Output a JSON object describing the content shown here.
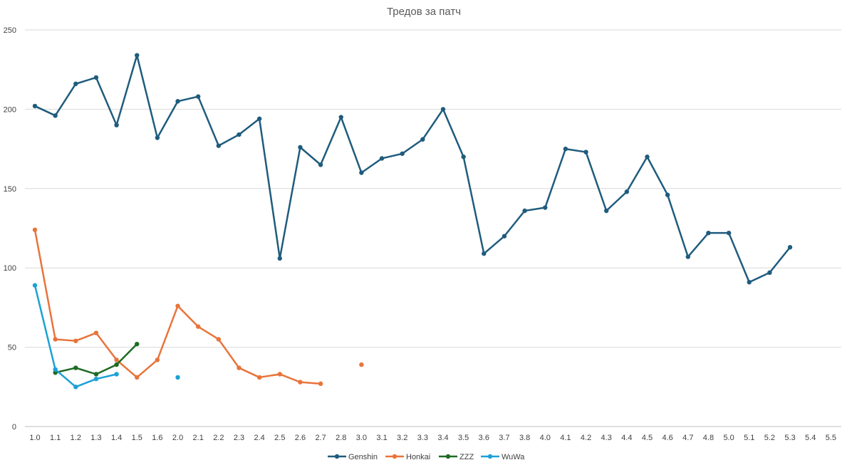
{
  "chart_data": {
    "type": "line",
    "title": "Тредов за патч",
    "xlabel": "",
    "ylabel": "",
    "ylim": [
      0,
      250
    ],
    "yticks": [
      0,
      50,
      100,
      150,
      200,
      250
    ],
    "grid": "horizontal",
    "legend_position": "bottom",
    "categories": [
      "1.0",
      "1.1",
      "1.2",
      "1.3",
      "1.4",
      "1.5",
      "1.6",
      "2.0",
      "2.1",
      "2.2",
      "2.3",
      "2.4",
      "2.5",
      "2.6",
      "2.7",
      "2.8",
      "3.0",
      "3.1",
      "3.2",
      "3.3",
      "3.4",
      "3.5",
      "3.6",
      "3.7",
      "3.8",
      "4.0",
      "4.1",
      "4.2",
      "4.3",
      "4.4",
      "4.5",
      "4.6",
      "4.7",
      "4.8",
      "5.0",
      "5.1",
      "5.2",
      "5.3",
      "5.4",
      "5.5"
    ],
    "series": [
      {
        "name": "Genshin",
        "color": "#1f5c7d",
        "values": [
          202,
          196,
          216,
          220,
          190,
          234,
          182,
          205,
          208,
          177,
          184,
          194,
          106,
          176,
          165,
          195,
          160,
          169,
          172,
          181,
          200,
          170,
          109,
          120,
          136,
          138,
          175,
          173,
          136,
          148,
          170,
          146,
          107,
          122,
          122,
          91,
          97,
          113,
          null,
          null
        ]
      },
      {
        "name": "Honkai",
        "color": "#e8743b",
        "values": [
          124,
          55,
          54,
          59,
          42,
          31,
          42,
          76,
          63,
          55,
          37,
          31,
          33,
          28,
          27,
          null,
          39,
          null,
          null,
          null,
          null,
          null,
          null,
          null,
          null,
          null,
          null,
          null,
          null,
          null,
          null,
          null,
          null,
          null,
          null,
          null,
          null,
          null,
          null,
          null
        ]
      },
      {
        "name": "ZZZ",
        "color": "#1e6b24",
        "values": [
          null,
          34,
          37,
          33,
          39,
          52,
          null,
          null,
          null,
          null,
          null,
          null,
          null,
          null,
          null,
          null,
          null,
          null,
          null,
          null,
          null,
          null,
          null,
          null,
          null,
          null,
          null,
          null,
          null,
          null,
          null,
          null,
          null,
          null,
          null,
          null,
          null,
          null,
          null,
          null
        ]
      },
      {
        "name": "WuWa",
        "color": "#1ba1d6",
        "values": [
          89,
          36,
          25,
          30,
          33,
          null,
          null,
          31,
          null,
          null,
          null,
          null,
          null,
          null,
          null,
          null,
          null,
          null,
          null,
          null,
          null,
          null,
          null,
          null,
          null,
          null,
          null,
          null,
          null,
          null,
          null,
          null,
          null,
          null,
          null,
          null,
          null,
          null,
          null,
          null
        ]
      }
    ]
  }
}
